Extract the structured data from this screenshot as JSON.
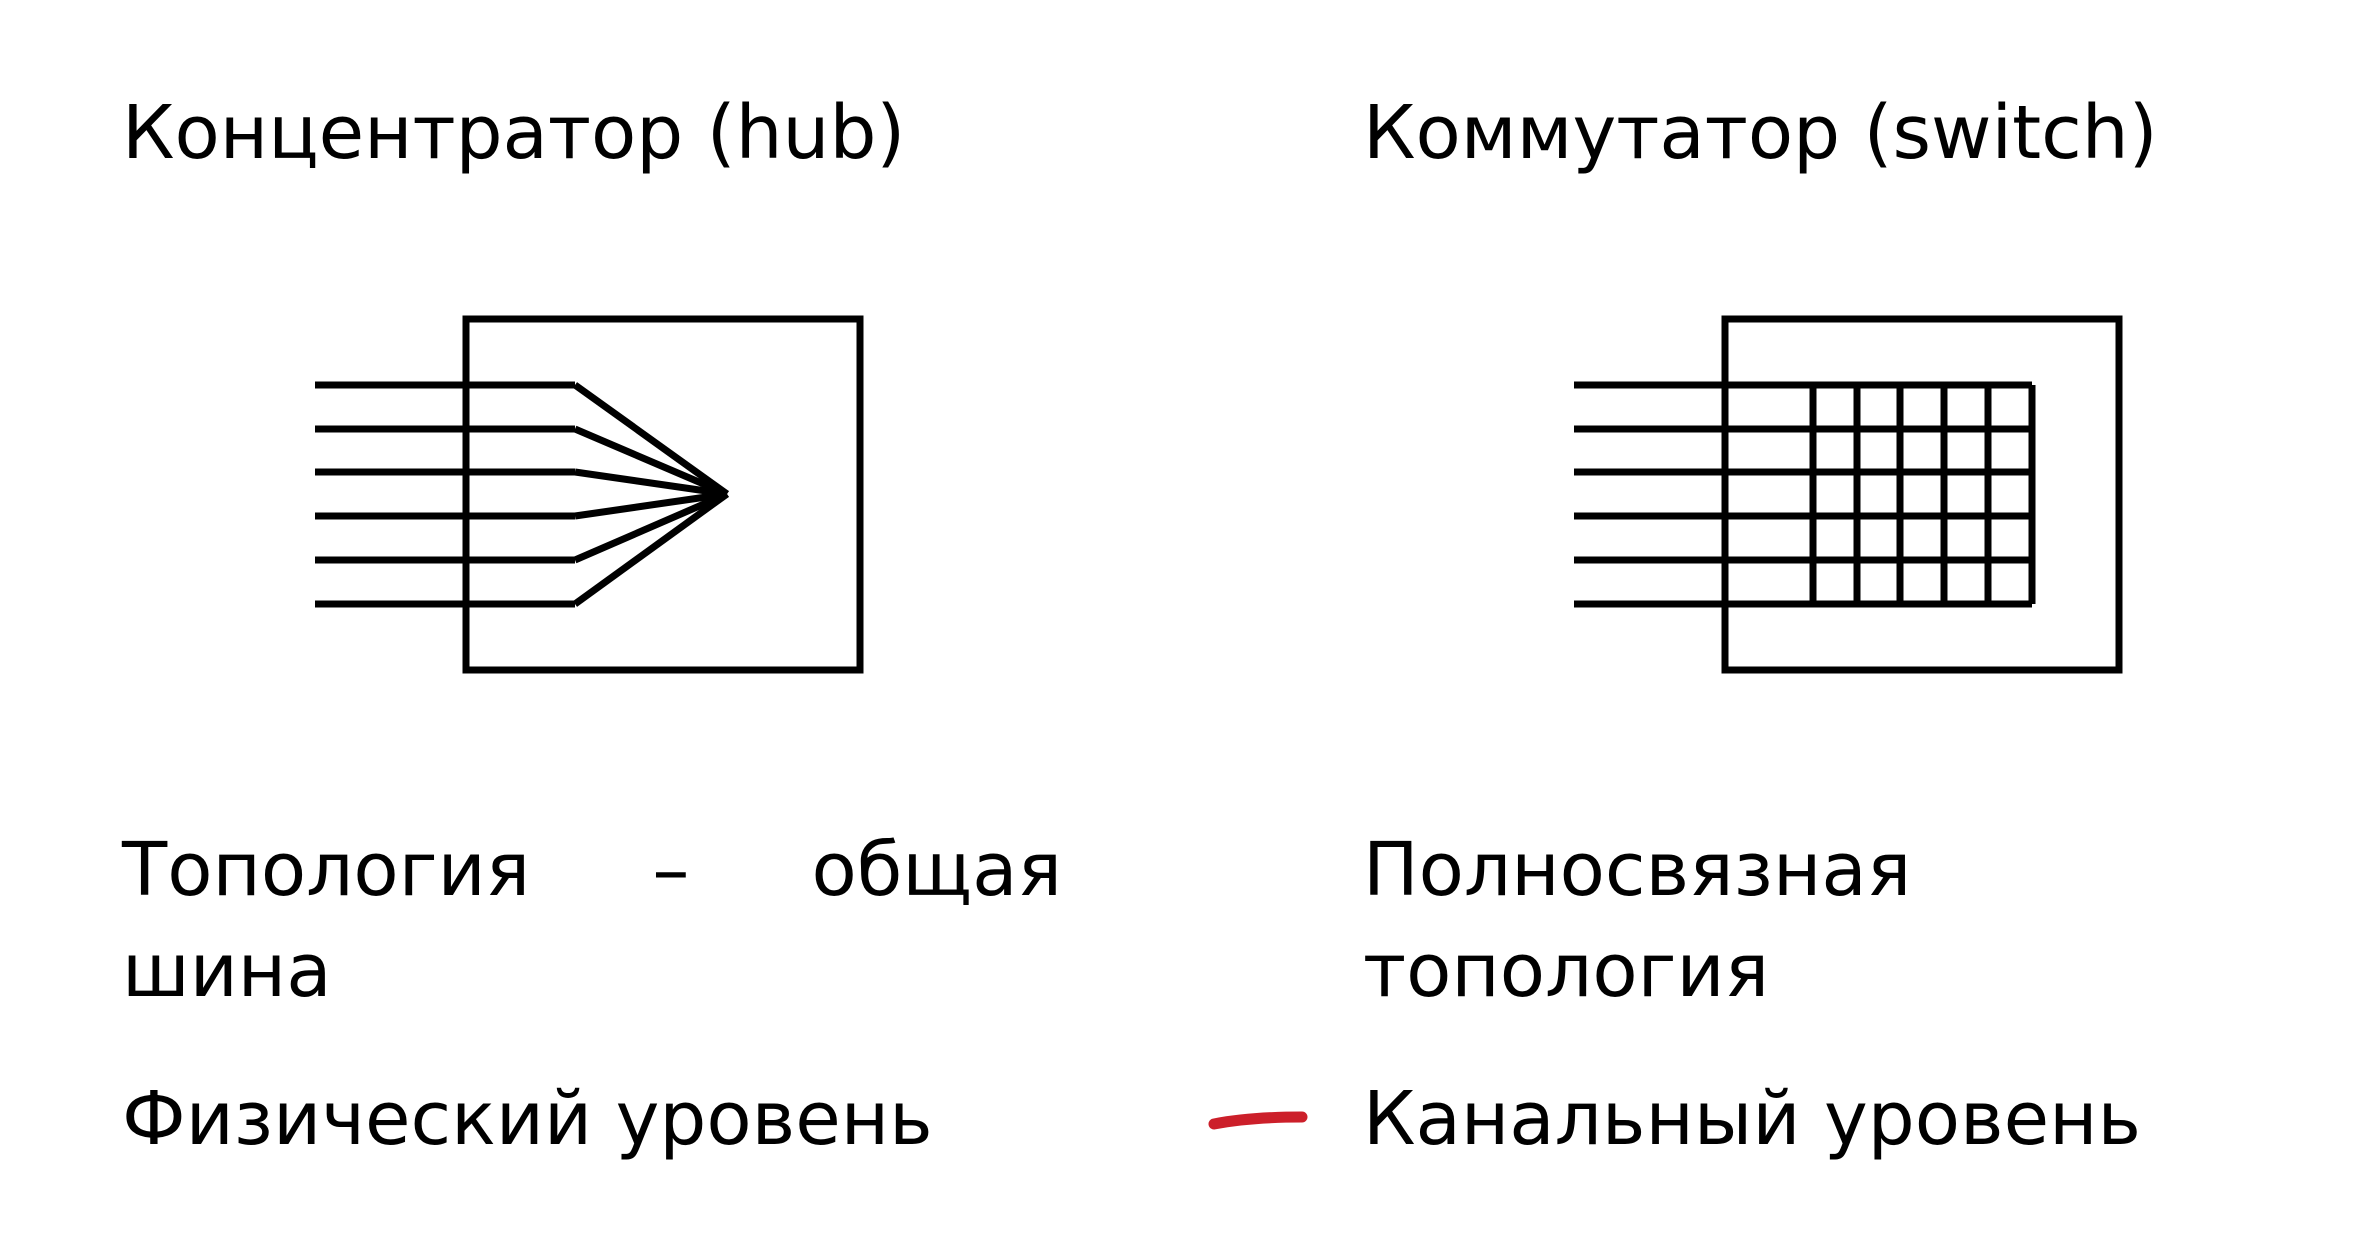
{
  "hub": {
    "title": "Концентратор (hub)",
    "topology_word1": "Топология",
    "topology_dash": "–",
    "topology_word2": "общая",
    "topology_line2": "шина",
    "layer": "Физический уровень"
  },
  "switch": {
    "title": "Коммутатор (switch)",
    "topology_line1": "Полносвязная",
    "topology_line2": "топология",
    "layer": "Канальный уровень"
  },
  "colors": {
    "stroke": "#000000",
    "annotation": "#cc1f2a"
  }
}
